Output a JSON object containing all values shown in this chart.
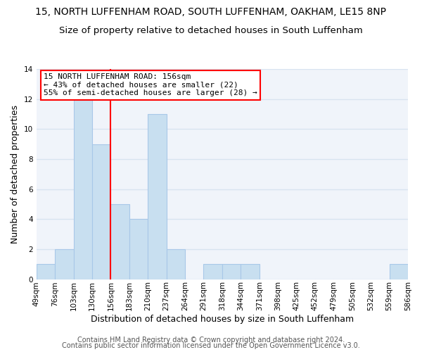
{
  "title": "15, NORTH LUFFENHAM ROAD, SOUTH LUFFENHAM, OAKHAM, LE15 8NP",
  "subtitle": "Size of property relative to detached houses in South Luffenham",
  "xlabel": "Distribution of detached houses by size in South Luffenham",
  "ylabel": "Number of detached properties",
  "bin_labels": [
    "49sqm",
    "76sqm",
    "103sqm",
    "130sqm",
    "156sqm",
    "183sqm",
    "210sqm",
    "237sqm",
    "264sqm",
    "291sqm",
    "318sqm",
    "344sqm",
    "371sqm",
    "398sqm",
    "425sqm",
    "452sqm",
    "479sqm",
    "505sqm",
    "532sqm",
    "559sqm",
    "586sqm"
  ],
  "bar_heights": [
    1,
    2,
    12,
    9,
    5,
    4,
    11,
    2,
    0,
    1,
    1,
    1,
    0,
    0,
    0,
    0,
    0,
    0,
    0,
    1
  ],
  "bar_color": "#c8dff0",
  "bar_edge_color": "#a8c8e8",
  "redline_index": 4,
  "ylim": [
    0,
    14
  ],
  "yticks": [
    0,
    2,
    4,
    6,
    8,
    10,
    12,
    14
  ],
  "annotation_line1": "15 NORTH LUFFENHAM ROAD: 156sqm",
  "annotation_line2": "← 43% of detached houses are smaller (22)",
  "annotation_line3": "55% of semi-detached houses are larger (28) →",
  "footer_line1": "Contains HM Land Registry data © Crown copyright and database right 2024.",
  "footer_line2": "Contains public sector information licensed under the Open Government Licence v3.0.",
  "background_color": "#ffffff",
  "plot_bg_color": "#f0f4fa",
  "grid_color": "#d8e4f0",
  "title_fontsize": 10,
  "subtitle_fontsize": 9.5,
  "axis_label_fontsize": 9,
  "tick_fontsize": 7.5,
  "annotation_fontsize": 8,
  "footer_fontsize": 7
}
